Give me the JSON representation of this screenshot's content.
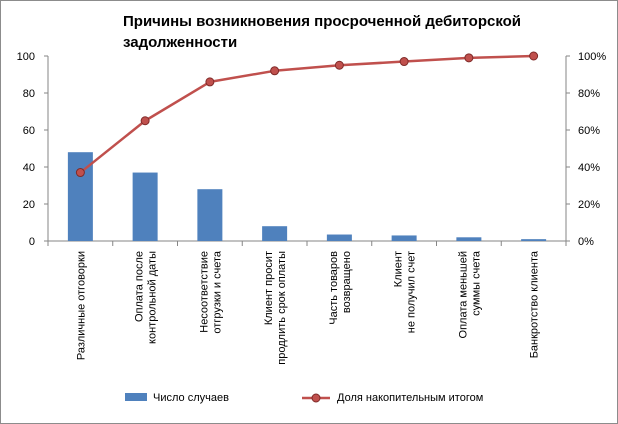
{
  "chart_data": {
    "type": "bar",
    "title_lines": [
      "Причины возникновения просроченной дебиторской",
      "задолженности"
    ],
    "categories": [
      [
        "Различные отговорки"
      ],
      [
        "Оплата после",
        "контрольной даты"
      ],
      [
        "Несоответствие",
        "отгрузки и счета"
      ],
      [
        "Клиент просит",
        "продлить срок оплаты"
      ],
      [
        "Часть товаров",
        "возвращено"
      ],
      [
        "Клиент",
        "не получил счет"
      ],
      [
        "Оплата меньшей",
        "суммы счета"
      ],
      [
        "Банкротство клиента"
      ]
    ],
    "series": [
      {
        "name": "Число случаев",
        "type": "bar",
        "axis": "left",
        "color": "#4f81bd",
        "values": [
          48,
          37,
          28,
          8,
          3.5,
          3,
          2,
          1
        ]
      },
      {
        "name": "Доля накопительным итогом",
        "type": "line",
        "axis": "right",
        "color": "#c0504d",
        "values": [
          37,
          65,
          86,
          92,
          95,
          97,
          99,
          100
        ]
      }
    ],
    "y_left": {
      "min": 0,
      "max": 100,
      "ticks": [
        "0",
        "20",
        "40",
        "60",
        "80",
        "100"
      ]
    },
    "y_right": {
      "min": 0,
      "max": 100,
      "ticks": [
        "0%",
        "20%",
        "40%",
        "60%",
        "80%",
        "100%"
      ]
    },
    "grid": false,
    "legend": "bottom"
  }
}
